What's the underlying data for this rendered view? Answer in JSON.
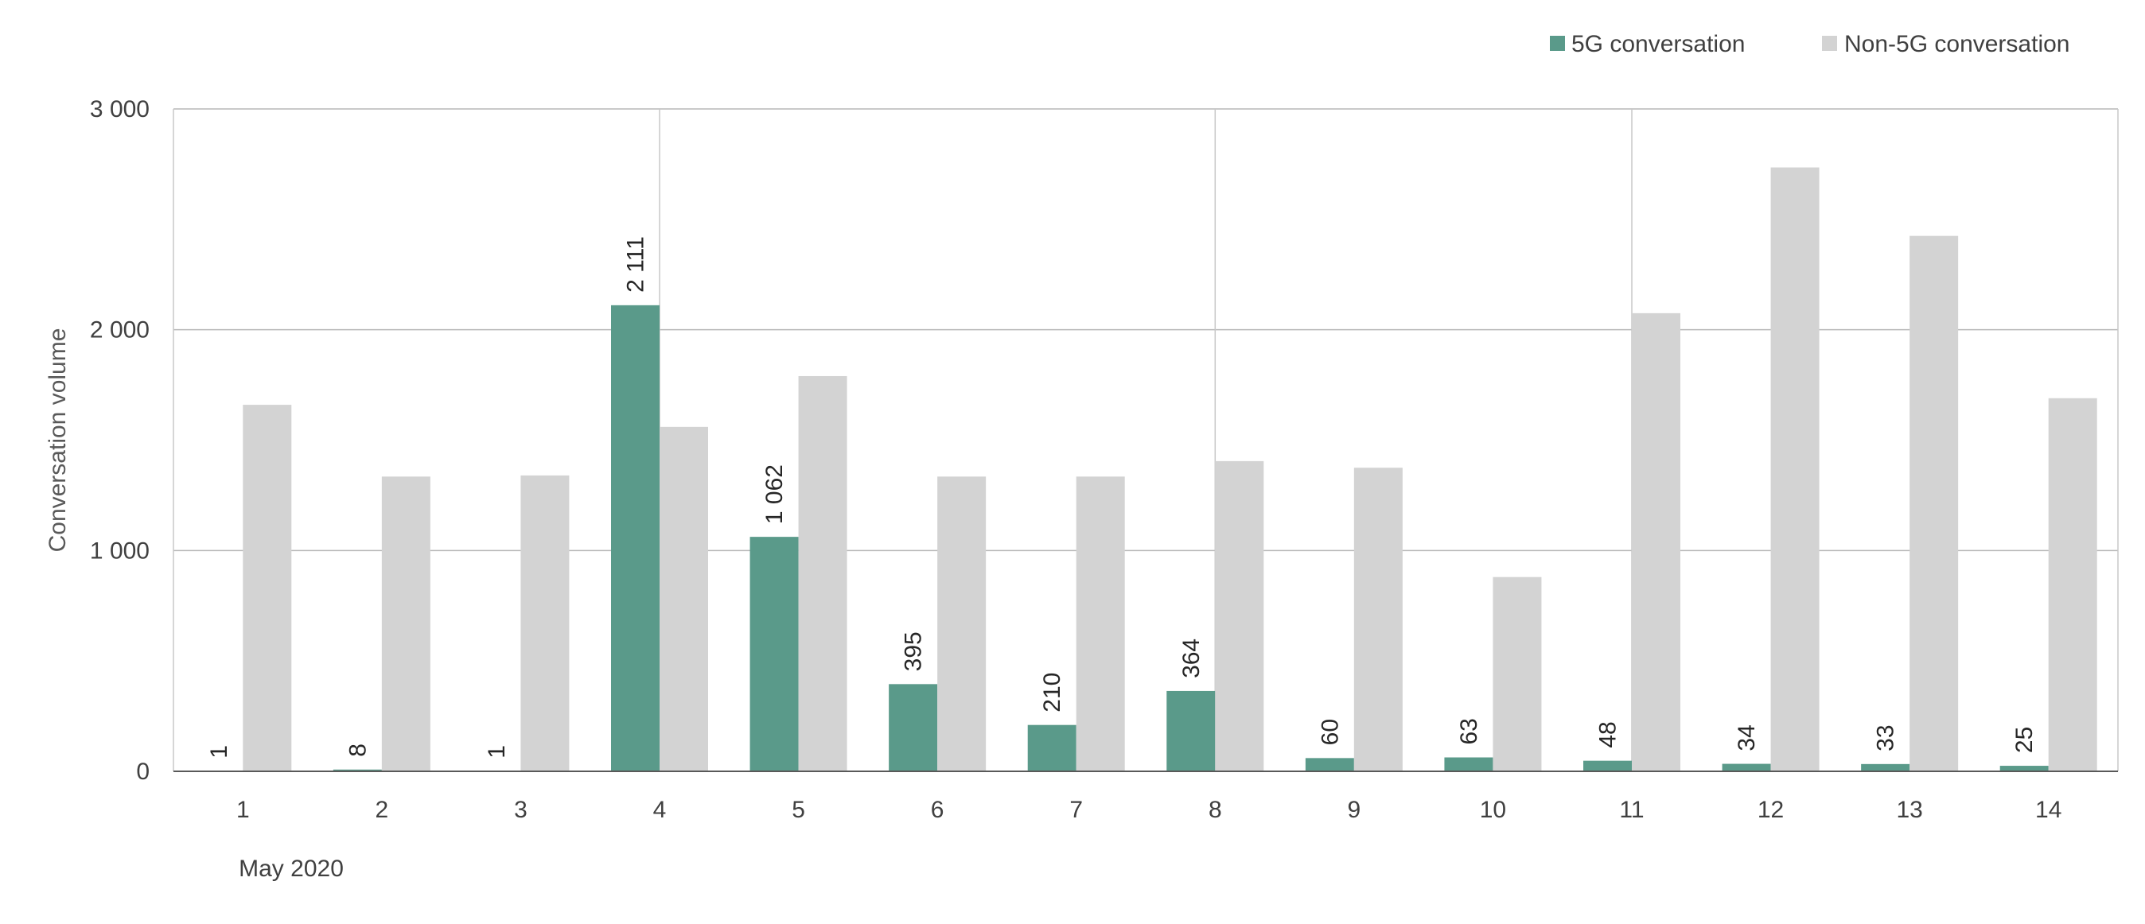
{
  "chart_data": {
    "type": "bar",
    "title": "",
    "xlabel": "",
    "x_group_label": "May 2020",
    "ylabel": "Conversation volume",
    "ylim": [
      0,
      3000
    ],
    "yticks": [
      0,
      1000,
      2000,
      3000
    ],
    "ytick_labels": [
      "0",
      "1 000",
      "2 000",
      "3 000"
    ],
    "categories": [
      "1",
      "2",
      "3",
      "4",
      "5",
      "6",
      "7",
      "8",
      "9",
      "10",
      "11",
      "12",
      "13",
      "14"
    ],
    "grid": true,
    "legend_position": "top-right",
    "series": [
      {
        "name": "5G conversation",
        "color": "#5a9a8a",
        "values": [
          1,
          8,
          1,
          2111,
          1062,
          395,
          210,
          364,
          60,
          63,
          48,
          34,
          33,
          25
        ],
        "data_labels": [
          "1",
          "8",
          "1",
          "2 111",
          "1 062",
          "395",
          "210",
          "364",
          "60",
          "63",
          "48",
          "34",
          "33",
          "25"
        ]
      },
      {
        "name": "Non-5G conversation",
        "color": "#d3d3d3",
        "values": [
          1660,
          1335,
          1340,
          1560,
          1790,
          1335,
          1335,
          1405,
          1375,
          880,
          2075,
          2735,
          2425,
          1690
        ]
      }
    ]
  }
}
